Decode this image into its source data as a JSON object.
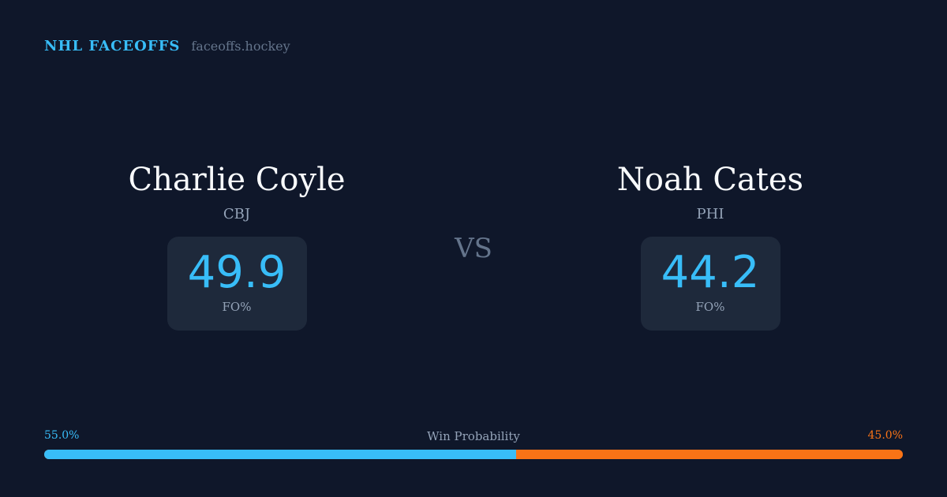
{
  "header": {
    "brand": "NHL FACEOFFS",
    "site": "faceoffs.hockey"
  },
  "players": [
    {
      "name": "Charlie Coyle",
      "team": "CBJ",
      "fo_pct": "49.9",
      "fo_label": "FO%"
    },
    {
      "name": "Noah Cates",
      "team": "PHI",
      "fo_pct": "44.2",
      "fo_label": "FO%"
    }
  ],
  "vs": "VS",
  "win_probability": {
    "label": "Win Probability",
    "left": "55.0%",
    "right": "45.0%",
    "left_value": 55.0,
    "right_value": 45.0,
    "left_color": "#38bdf8",
    "right_color": "#f97316"
  }
}
